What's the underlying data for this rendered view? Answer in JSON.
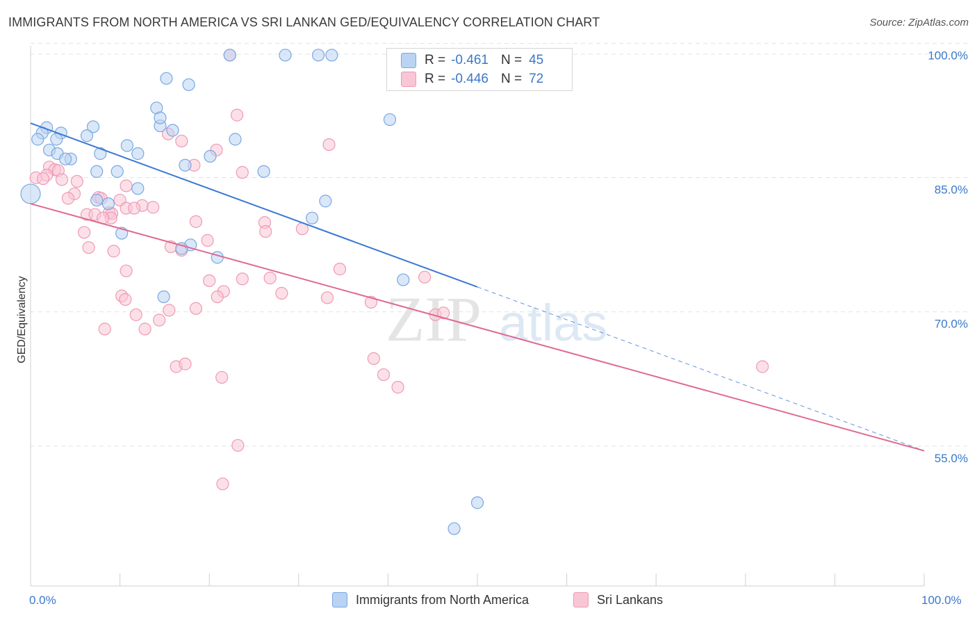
{
  "title": "IMMIGRANTS FROM NORTH AMERICA VS SRI LANKAN GED/EQUIVALENCY CORRELATION CHART",
  "source": "Source: ZipAtlas.com",
  "watermark": {
    "zip": "ZIP",
    "atlas": "atlas"
  },
  "legend": {
    "r_label": "R =",
    "n_label": "N =",
    "rows": [
      {
        "r": "-0.461",
        "n": "45",
        "fill": "#b9d3f2",
        "stroke": "#7aa8e0"
      },
      {
        "r": "-0.446",
        "n": "72",
        "fill": "#f9c6d6",
        "stroke": "#ee9ab5"
      }
    ]
  },
  "bottom_legend": [
    "Immigrants from North America",
    "Sri Lankans"
  ],
  "chart_data": {
    "type": "scatter",
    "xlabel": "",
    "ylabel": "GED/Equivalency",
    "xlim": [
      0,
      100
    ],
    "ylim": [
      40.7,
      101.5
    ],
    "x_tick_labels": [
      "0.0%",
      "100.0%"
    ],
    "y_tick_labels": [
      {
        "value": 100.0,
        "label": "100.0%"
      },
      {
        "value": 85.0,
        "label": "85.0%"
      },
      {
        "value": 70.0,
        "label": "70.0%"
      },
      {
        "value": 55.0,
        "label": "55.0%"
      }
    ],
    "grid": "horizontal dashed",
    "series": [
      {
        "name": "Immigrants from North America",
        "color": "#3a78d6",
        "fill": "#b9d3f2",
        "stroke": "#7aa8e0",
        "trend": {
          "x0": 0,
          "y0": 92.4,
          "x1": 50,
          "y1": 74.1,
          "dash_to_x": 100,
          "dash_to_y": 55.8
        },
        "points": [
          [
            15.2,
            97.4
          ],
          [
            17.7,
            96.7
          ],
          [
            22.3,
            100.0
          ],
          [
            28.5,
            100.0
          ],
          [
            32.2,
            100.0
          ],
          [
            33.7,
            100.0
          ],
          [
            14.5,
            92.1
          ],
          [
            7.0,
            92.0
          ],
          [
            1.8,
            91.9
          ],
          [
            1.3,
            91.3
          ],
          [
            3.4,
            91.3
          ],
          [
            0.8,
            90.6
          ],
          [
            2.9,
            90.6
          ],
          [
            14.1,
            94.1
          ],
          [
            14.5,
            93.0
          ],
          [
            15.9,
            91.6
          ],
          [
            6.3,
            91.0
          ],
          [
            22.9,
            90.6
          ],
          [
            10.8,
            89.9
          ],
          [
            7.8,
            89.0
          ],
          [
            2.1,
            89.4
          ],
          [
            3.0,
            89.0
          ],
          [
            12.0,
            89.0
          ],
          [
            20.1,
            88.7
          ],
          [
            4.5,
            88.4
          ],
          [
            3.9,
            88.4
          ],
          [
            17.3,
            87.7
          ],
          [
            7.4,
            87.0
          ],
          [
            9.7,
            87.0
          ],
          [
            26.1,
            87.0
          ],
          [
            40.2,
            92.8
          ],
          [
            12.0,
            85.1
          ],
          [
            7.4,
            83.8
          ],
          [
            8.7,
            83.4
          ],
          [
            33.0,
            83.7
          ],
          [
            31.5,
            81.8
          ],
          [
            10.2,
            80.1
          ],
          [
            17.9,
            78.8
          ],
          [
            16.9,
            78.4
          ],
          [
            20.9,
            77.4
          ],
          [
            14.9,
            73.0
          ],
          [
            41.7,
            74.9
          ],
          [
            50.0,
            50.0
          ],
          [
            47.4,
            47.1
          ],
          [
            0.0,
            84.5
          ]
        ]
      },
      {
        "name": "Sri Lankans",
        "color": "#e0698f",
        "fill": "#f9c6d6",
        "stroke": "#ee9ab5",
        "trend": {
          "x0": 0,
          "y0": 83.4,
          "x1": 100,
          "y1": 55.8
        },
        "points": [
          [
            22.3,
            100.0
          ],
          [
            23.1,
            93.3
          ],
          [
            15.4,
            91.2
          ],
          [
            16.9,
            90.4
          ],
          [
            33.4,
            90.0
          ],
          [
            20.8,
            89.4
          ],
          [
            18.3,
            87.7
          ],
          [
            2.1,
            87.5
          ],
          [
            2.7,
            87.2
          ],
          [
            3.1,
            87.1
          ],
          [
            23.7,
            86.9
          ],
          [
            1.8,
            86.6
          ],
          [
            0.6,
            86.3
          ],
          [
            1.4,
            86.2
          ],
          [
            3.5,
            86.1
          ],
          [
            5.2,
            85.9
          ],
          [
            10.7,
            85.4
          ],
          [
            4.9,
            84.5
          ],
          [
            7.6,
            84.1
          ],
          [
            10.0,
            83.8
          ],
          [
            7.9,
            84.0
          ],
          [
            4.2,
            84.0
          ],
          [
            12.5,
            83.2
          ],
          [
            10.7,
            82.9
          ],
          [
            13.7,
            83.0
          ],
          [
            11.6,
            82.9
          ],
          [
            8.8,
            82.4
          ],
          [
            9.1,
            82.3
          ],
          [
            6.3,
            82.2
          ],
          [
            7.2,
            82.2
          ],
          [
            9.0,
            81.8
          ],
          [
            8.1,
            81.8
          ],
          [
            18.5,
            81.4
          ],
          [
            26.2,
            81.3
          ],
          [
            30.4,
            80.6
          ],
          [
            26.3,
            80.3
          ],
          [
            6.0,
            80.2
          ],
          [
            19.8,
            79.3
          ],
          [
            6.5,
            78.5
          ],
          [
            15.7,
            78.6
          ],
          [
            9.3,
            78.1
          ],
          [
            16.9,
            78.2
          ],
          [
            10.7,
            75.9
          ],
          [
            26.8,
            75.1
          ],
          [
            20.0,
            74.8
          ],
          [
            23.7,
            75.0
          ],
          [
            34.6,
            76.1
          ],
          [
            44.1,
            75.2
          ],
          [
            10.2,
            73.1
          ],
          [
            10.6,
            72.7
          ],
          [
            21.6,
            73.6
          ],
          [
            28.1,
            73.4
          ],
          [
            20.9,
            73.0
          ],
          [
            33.2,
            72.9
          ],
          [
            38.1,
            72.4
          ],
          [
            15.5,
            71.5
          ],
          [
            18.5,
            71.7
          ],
          [
            11.8,
            71.0
          ],
          [
            14.4,
            70.4
          ],
          [
            45.3,
            71.0
          ],
          [
            46.2,
            71.2
          ],
          [
            8.3,
            69.4
          ],
          [
            12.8,
            69.4
          ],
          [
            38.4,
            66.1
          ],
          [
            16.3,
            65.2
          ],
          [
            17.3,
            65.5
          ],
          [
            21.4,
            64.0
          ],
          [
            39.5,
            64.3
          ],
          [
            41.1,
            62.9
          ],
          [
            81.9,
            65.2
          ],
          [
            23.2,
            56.4
          ],
          [
            21.5,
            52.1
          ]
        ]
      }
    ]
  }
}
